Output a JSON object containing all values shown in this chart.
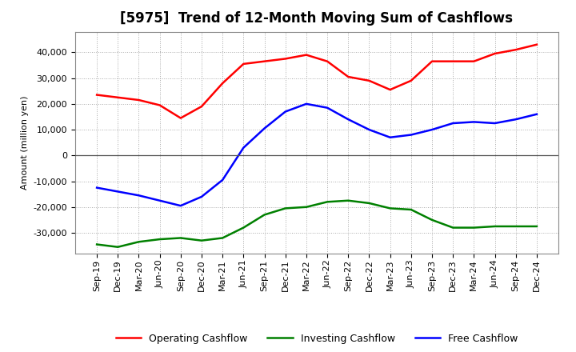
{
  "title": "[5975]  Trend of 12-Month Moving Sum of Cashflows",
  "ylabel": "Amount (million yen)",
  "background_color": "#ffffff",
  "grid_color": "#aaaaaa",
  "x_labels": [
    "Sep-19",
    "Dec-19",
    "Mar-20",
    "Jun-20",
    "Sep-20",
    "Dec-20",
    "Mar-21",
    "Jun-21",
    "Sep-21",
    "Dec-21",
    "Mar-22",
    "Jun-22",
    "Sep-22",
    "Dec-22",
    "Mar-23",
    "Jun-23",
    "Sep-23",
    "Dec-23",
    "Mar-24",
    "Jun-24",
    "Sep-24",
    "Dec-24"
  ],
  "operating_cashflow": [
    23500,
    22500,
    21500,
    19500,
    14500,
    19000,
    28000,
    35500,
    36500,
    37500,
    39000,
    36500,
    30500,
    29000,
    25500,
    29000,
    36500,
    36500,
    36500,
    39500,
    41000,
    43000
  ],
  "investing_cashflow": [
    -34500,
    -35500,
    -33500,
    -32500,
    -32000,
    -33000,
    -32000,
    -28000,
    -23000,
    -20500,
    -20000,
    -18000,
    -17500,
    -18500,
    -20500,
    -21000,
    -25000,
    -28000,
    -28000,
    -27500,
    -27500,
    -27500
  ],
  "free_cashflow": [
    -12500,
    -14000,
    -15500,
    -17500,
    -19500,
    -16000,
    -9500,
    3000,
    10500,
    17000,
    20000,
    18500,
    14000,
    10000,
    7000,
    8000,
    10000,
    12500,
    13000,
    12500,
    14000,
    16000
  ],
  "operating_color": "#ff0000",
  "investing_color": "#008000",
  "free_color": "#0000ff",
  "ylim": [
    -38000,
    48000
  ],
  "yticks": [
    -30000,
    -20000,
    -10000,
    0,
    10000,
    20000,
    30000,
    40000
  ],
  "line_width": 1.8,
  "title_fontsize": 12,
  "legend_fontsize": 9,
  "tick_fontsize": 8
}
